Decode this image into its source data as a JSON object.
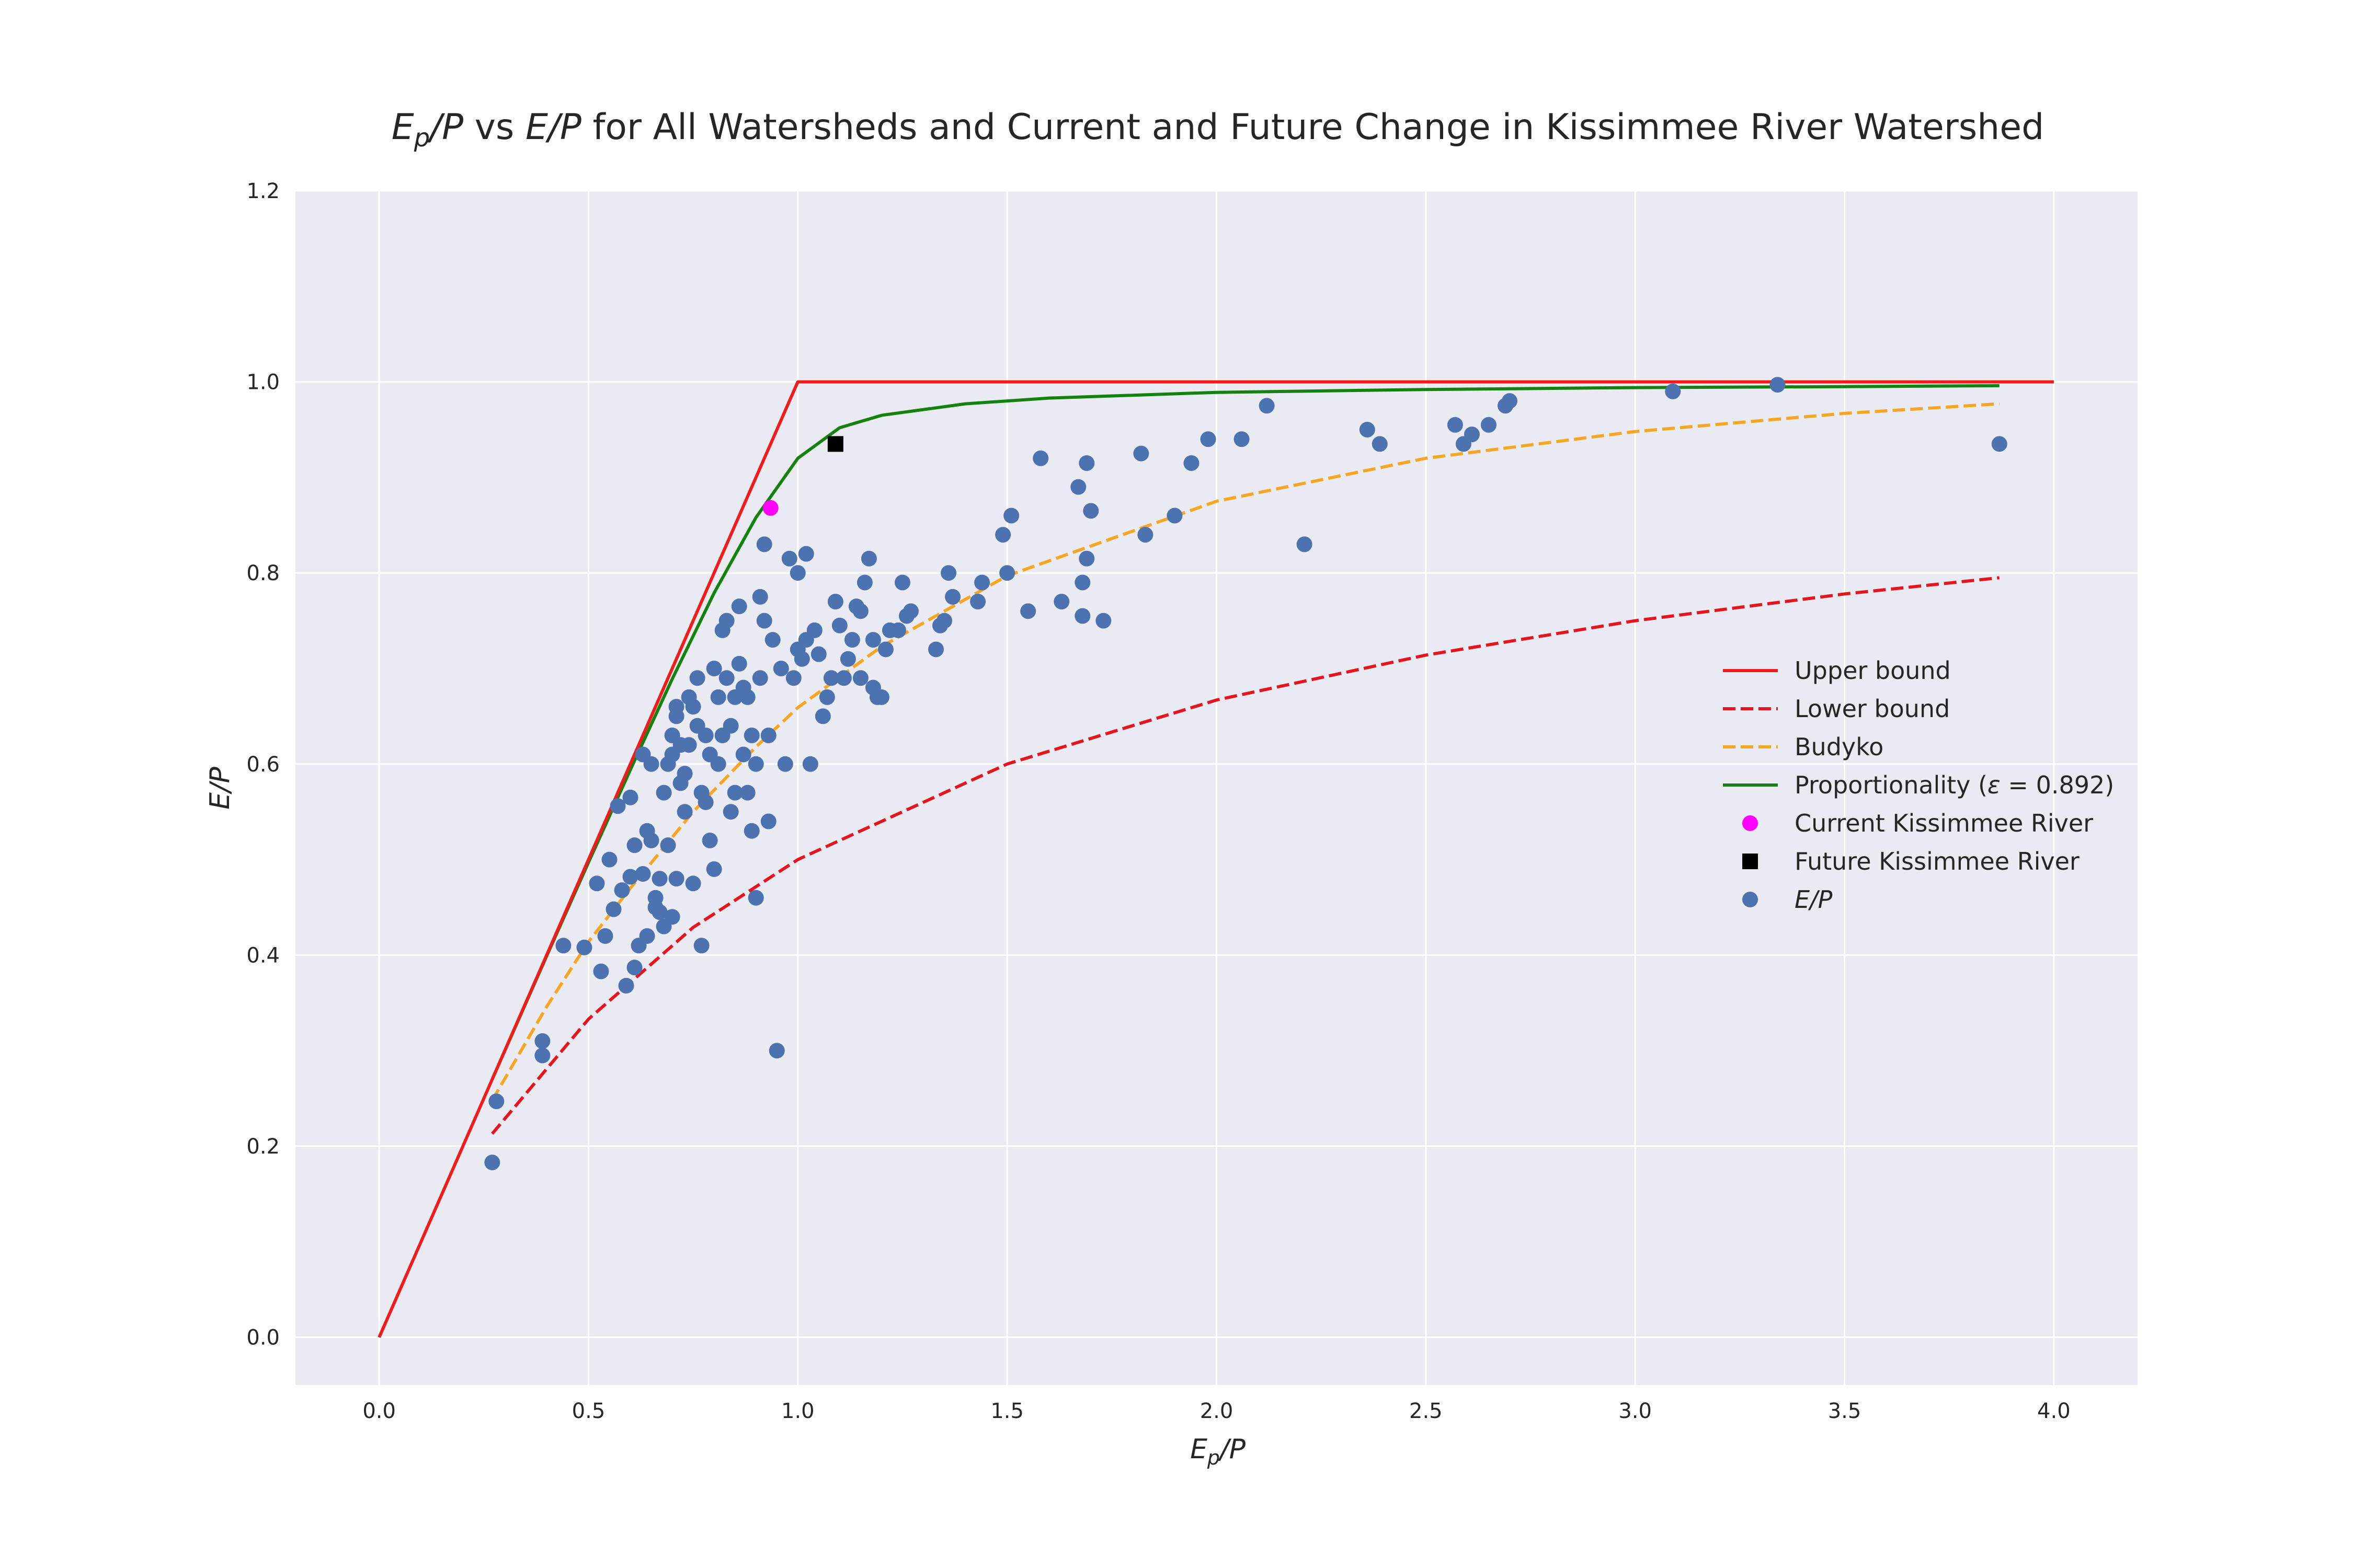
{
  "chart_data": {
    "type": "scatter",
    "title": {
      "ep": "E",
      "ep_sub": "p",
      "slash_p": "/P",
      "vs": " vs ",
      "e": "E",
      "rest": " for All Watersheds and Current and Future Change in Kissimmee River Watershed"
    },
    "xlabel": {
      "main": "E",
      "sub": "p",
      "rest": "/P"
    },
    "ylabel": "E/P",
    "xlim": [
      -0.2,
      4.2
    ],
    "ylim": [
      -0.05,
      1.2
    ],
    "xticks": [
      0.0,
      0.5,
      1.0,
      1.5,
      2.0,
      2.5,
      3.0,
      3.5,
      4.0
    ],
    "yticks": [
      0.0,
      0.2,
      0.4,
      0.6,
      0.8,
      1.0,
      1.2
    ],
    "xtick_labels": [
      "0.0",
      "0.5",
      "1.0",
      "1.5",
      "2.0",
      "2.5",
      "3.0",
      "3.5",
      "4.0"
    ],
    "ytick_labels": [
      "0.0",
      "0.2",
      "0.4",
      "0.6",
      "0.8",
      "1.0",
      "1.2"
    ],
    "grid": true,
    "legend_position": "center-right",
    "colors": {
      "background": "#eaeaf2",
      "grid": "#ffffff",
      "upper": "#ee1c1c",
      "lower": "#e6141e",
      "budyko": "#f5a623",
      "proportionality": "#14820f",
      "current": "#ff00ff",
      "future": "#000000",
      "points": "#4c72b0"
    },
    "series": [
      {
        "name": "Upper bound",
        "style": "solid",
        "x": [
          0.0,
          1.0,
          4.0
        ],
        "y": [
          0.0,
          1.0,
          1.0
        ]
      },
      {
        "name": "Lower bound",
        "style": "dashed",
        "x": [
          0.27,
          0.5,
          0.75,
          1.0,
          1.5,
          2.0,
          2.5,
          3.0,
          3.5,
          3.87
        ],
        "y": [
          0.213,
          0.333,
          0.429,
          0.5,
          0.6,
          0.667,
          0.714,
          0.75,
          0.778,
          0.795
        ]
      },
      {
        "name": "Budyko",
        "style": "dashed",
        "x": [
          0.27,
          0.4,
          0.5,
          0.6,
          0.75,
          0.9,
          1.0,
          1.2,
          1.5,
          2.0,
          2.5,
          3.0,
          3.5,
          3.87
        ],
        "y": [
          0.248,
          0.346,
          0.414,
          0.47,
          0.55,
          0.618,
          0.659,
          0.723,
          0.797,
          0.875,
          0.92,
          0.948,
          0.967,
          0.977
        ]
      },
      {
        "name": "Proportionality",
        "label_pre": "Proportionality (",
        "label_eps": "ε",
        "label_post": " = 0.892)",
        "style": "solid",
        "x": [
          0.27,
          0.4,
          0.5,
          0.6,
          0.7,
          0.8,
          0.9,
          1.0,
          1.1,
          1.2,
          1.4,
          1.6,
          2.0,
          2.5,
          3.0,
          3.5,
          3.87
        ],
        "y": [
          0.27,
          0.399,
          0.497,
          0.594,
          0.689,
          0.779,
          0.858,
          0.92,
          0.952,
          0.965,
          0.977,
          0.983,
          0.989,
          0.992,
          0.994,
          0.995,
          0.996
        ]
      },
      {
        "name": "Current Kissimmee River",
        "marker": "circle",
        "x": [
          0.935
        ],
        "y": [
          0.868
        ]
      },
      {
        "name": "Future Kissimmee River",
        "marker": "square",
        "x": [
          1.09
        ],
        "y": [
          0.935
        ]
      },
      {
        "name": "E/P",
        "marker": "circle",
        "x": [
          0.27,
          0.28,
          0.39,
          0.39,
          0.44,
          0.49,
          0.52,
          0.53,
          0.54,
          0.55,
          0.56,
          0.57,
          0.58,
          0.59,
          0.6,
          0.6,
          0.61,
          0.61,
          0.62,
          0.63,
          0.63,
          0.64,
          0.64,
          0.65,
          0.65,
          0.66,
          0.66,
          0.67,
          0.67,
          0.68,
          0.68,
          0.69,
          0.69,
          0.7,
          0.7,
          0.7,
          0.71,
          0.71,
          0.71,
          0.72,
          0.72,
          0.73,
          0.73,
          0.74,
          0.74,
          0.75,
          0.75,
          0.76,
          0.76,
          0.77,
          0.77,
          0.78,
          0.78,
          0.79,
          0.79,
          0.8,
          0.8,
          0.81,
          0.81,
          0.82,
          0.82,
          0.83,
          0.83,
          0.84,
          0.84,
          0.85,
          0.85,
          0.86,
          0.86,
          0.87,
          0.87,
          0.88,
          0.88,
          0.89,
          0.89,
          0.9,
          0.9,
          0.91,
          0.91,
          0.92,
          0.92,
          0.93,
          0.93,
          0.94,
          0.95,
          0.96,
          0.97,
          0.98,
          0.99,
          1.0,
          1.0,
          1.01,
          1.02,
          1.02,
          1.03,
          1.04,
          1.05,
          1.06,
          1.07,
          1.08,
          1.09,
          1.1,
          1.11,
          1.12,
          1.13,
          1.14,
          1.15,
          1.15,
          1.16,
          1.17,
          1.18,
          1.18,
          1.19,
          1.2,
          1.21,
          1.22,
          1.24,
          1.25,
          1.26,
          1.27,
          1.33,
          1.34,
          1.35,
          1.36,
          1.37,
          1.43,
          1.44,
          1.49,
          1.5,
          1.51,
          1.55,
          1.58,
          1.63,
          1.67,
          1.68,
          1.68,
          1.69,
          1.69,
          1.7,
          1.73,
          1.82,
          1.83,
          1.9,
          1.94,
          1.98,
          2.06,
          2.12,
          2.21,
          2.36,
          2.39,
          2.57,
          2.59,
          2.61,
          2.65,
          2.69,
          2.7,
          3.09,
          3.34,
          3.87
        ],
        "y": [
          0.183,
          0.247,
          0.31,
          0.295,
          0.41,
          0.408,
          0.475,
          0.383,
          0.42,
          0.5,
          0.448,
          0.556,
          0.468,
          0.368,
          0.482,
          0.565,
          0.387,
          0.515,
          0.41,
          0.61,
          0.485,
          0.53,
          0.42,
          0.6,
          0.52,
          0.45,
          0.46,
          0.48,
          0.445,
          0.57,
          0.43,
          0.515,
          0.6,
          0.61,
          0.63,
          0.44,
          0.65,
          0.66,
          0.48,
          0.58,
          0.62,
          0.55,
          0.59,
          0.62,
          0.67,
          0.66,
          0.475,
          0.64,
          0.69,
          0.57,
          0.41,
          0.63,
          0.56,
          0.52,
          0.61,
          0.7,
          0.49,
          0.6,
          0.67,
          0.63,
          0.74,
          0.69,
          0.75,
          0.64,
          0.55,
          0.57,
          0.67,
          0.765,
          0.705,
          0.68,
          0.61,
          0.67,
          0.57,
          0.53,
          0.63,
          0.6,
          0.46,
          0.69,
          0.775,
          0.75,
          0.83,
          0.54,
          0.63,
          0.73,
          0.3,
          0.7,
          0.6,
          0.815,
          0.69,
          0.72,
          0.8,
          0.71,
          0.82,
          0.73,
          0.6,
          0.74,
          0.715,
          0.65,
          0.67,
          0.69,
          0.77,
          0.745,
          0.69,
          0.71,
          0.73,
          0.765,
          0.76,
          0.69,
          0.79,
          0.815,
          0.73,
          0.68,
          0.67,
          0.67,
          0.72,
          0.74,
          0.74,
          0.79,
          0.755,
          0.76,
          0.72,
          0.745,
          0.75,
          0.8,
          0.775,
          0.77,
          0.79,
          0.84,
          0.8,
          0.86,
          0.76,
          0.92,
          0.77,
          0.89,
          0.755,
          0.79,
          0.815,
          0.915,
          0.865,
          0.75,
          0.925,
          0.84,
          0.86,
          0.915,
          0.94,
          0.94,
          0.975,
          0.83,
          0.95,
          0.935,
          0.955,
          0.935,
          0.945,
          0.955,
          0.975,
          0.98,
          0.99,
          0.997,
          0.935
        ]
      }
    ]
  }
}
